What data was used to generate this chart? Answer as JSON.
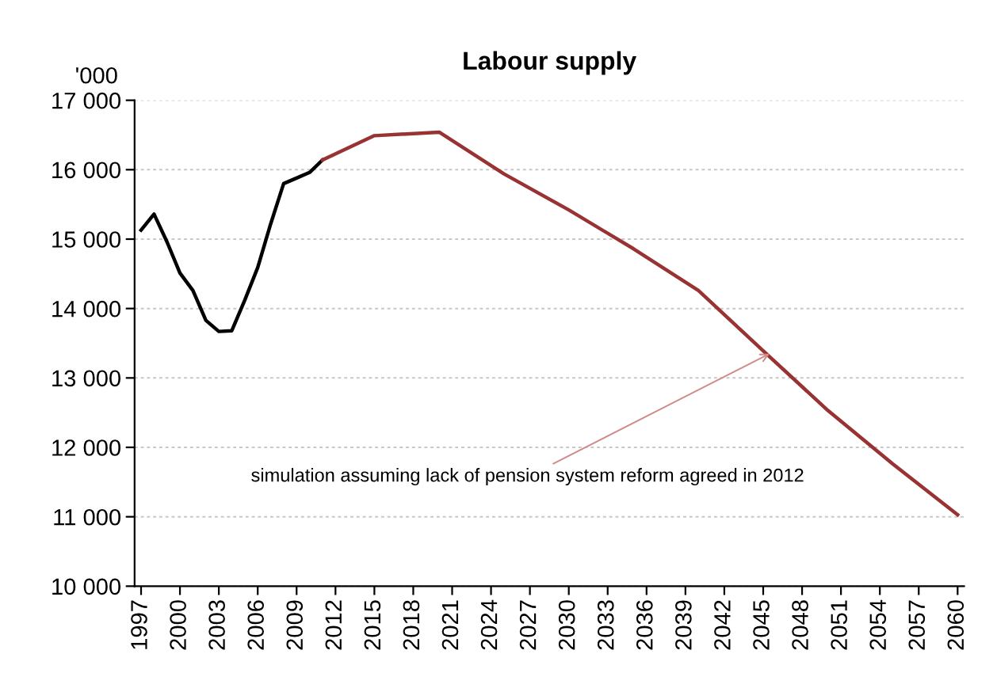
{
  "chart_data": {
    "type": "line",
    "title": "Labour supply",
    "ylabel": "'000",
    "series": [
      {
        "color": "#000000",
        "x": [
          1997,
          1998,
          1999,
          2000,
          2001,
          2002,
          2003,
          2004,
          2005,
          2006,
          2007,
          2008,
          2009,
          2010,
          2011
        ],
        "values": [
          15130,
          15360,
          14960,
          14510,
          14260,
          13830,
          13670,
          13680,
          14120,
          14590,
          15220,
          15800,
          15880,
          15960,
          16140
        ]
      },
      {
        "color": "#993333",
        "x": [
          2011,
          2015,
          2020,
          2025,
          2030,
          2035,
          2040,
          2045,
          2050,
          2055,
          2060
        ],
        "values": [
          16140,
          16490,
          16540,
          15940,
          15420,
          14860,
          14260,
          13390,
          12530,
          11760,
          11030
        ]
      }
    ],
    "xlim": [
      1996.5,
      2060.5
    ],
    "xticks": [
      1997,
      2000,
      2003,
      2006,
      2009,
      2012,
      2015,
      2018,
      2021,
      2024,
      2027,
      2030,
      2033,
      2036,
      2039,
      2042,
      2045,
      2048,
      2051,
      2054,
      2057,
      2060
    ],
    "ylim": [
      10000,
      17000
    ],
    "yticks": [
      {
        "value": 10000,
        "label": "10 000"
      },
      {
        "value": 11000,
        "label": "11 000"
      },
      {
        "value": 12000,
        "label": "12 000"
      },
      {
        "value": 13000,
        "label": "13 000"
      },
      {
        "value": 14000,
        "label": "14 000"
      },
      {
        "value": 15000,
        "label": "15 000"
      },
      {
        "value": 16000,
        "label": "16 000"
      },
      {
        "value": 17000,
        "label": "17 000"
      }
    ],
    "grid": "y",
    "marker": "none",
    "line_style": "solid",
    "legend": false,
    "annotations": [
      {
        "text": "simulation assuming lack of pension system reform agreed in 2012",
        "x": 2045.5,
        "y": 13350
      }
    ]
  }
}
